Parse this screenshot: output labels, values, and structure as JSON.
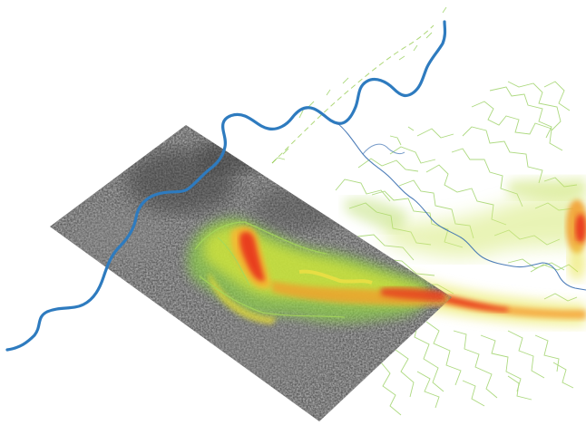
{
  "scene": {
    "description_visible_text": "",
    "layers": [
      {
        "id": "satellite",
        "name": "satellite-raster",
        "style": "grayscale urban imagery"
      },
      {
        "id": "heat",
        "name": "heat-overlay",
        "palette": [
          "#7ac943",
          "#d9e021",
          "#fbb03b",
          "#f15a24",
          "#c1272d"
        ]
      },
      {
        "id": "contours",
        "name": "contour-lines",
        "color": "#8cc63f"
      },
      {
        "id": "river",
        "name": "river",
        "color": "#2e7bbf"
      }
    ],
    "colors": {
      "background": "#ffffff",
      "river": "#2e7bbf",
      "contour": "#8cc63f",
      "heat_low": "#7ac943",
      "heat_mid": "#f7d51d",
      "heat_high": "#e8301c"
    }
  }
}
